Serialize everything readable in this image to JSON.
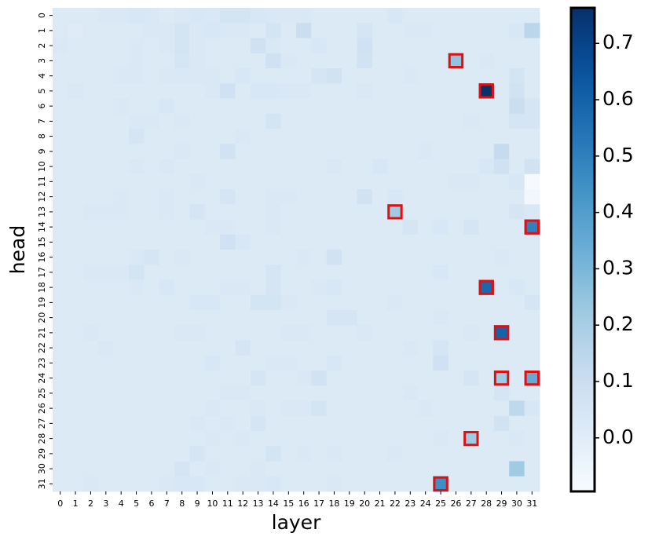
{
  "chart_data": {
    "type": "heatmap",
    "colormap": "Blues",
    "x_label": "layer",
    "y_label": "head",
    "x": [
      0,
      1,
      2,
      3,
      4,
      5,
      6,
      7,
      8,
      9,
      10,
      11,
      12,
      13,
      14,
      15,
      16,
      17,
      18,
      19,
      20,
      21,
      22,
      23,
      24,
      25,
      26,
      27,
      28,
      29,
      30,
      31
    ],
    "y": [
      0,
      1,
      2,
      3,
      4,
      5,
      6,
      7,
      8,
      9,
      10,
      11,
      12,
      13,
      14,
      15,
      16,
      17,
      18,
      19,
      20,
      21,
      22,
      23,
      24,
      25,
      26,
      27,
      28,
      29,
      30,
      31
    ],
    "zlim": [
      -0.095,
      0.763
    ],
    "colorbar_ticks": [
      {
        "value": 0,
        "label": "0.0"
      },
      0.1,
      0.2,
      0.3,
      0.4,
      0.5,
      0.6,
      0.7
    ],
    "highlight_color": "#dd1111",
    "highlights": [
      [
        3,
        26
      ],
      [
        5,
        28
      ],
      [
        13,
        22
      ],
      [
        14,
        31
      ],
      [
        18,
        28
      ],
      [
        21,
        29
      ],
      [
        24,
        29
      ],
      [
        24,
        31
      ],
      [
        28,
        27
      ],
      [
        31,
        25
      ]
    ],
    "values": [
      [
        0.02,
        0.02,
        0.02,
        0.03,
        0.03,
        0.04,
        0.03,
        0.02,
        0.03,
        0.04,
        0.03,
        0.06,
        0.06,
        0.04,
        0.03,
        0.03,
        0.03,
        0.02,
        0.02,
        0.02,
        0.02,
        0.02,
        0.04,
        0.02,
        0.02,
        0.02,
        0.02,
        0.02,
        0.02,
        0.02,
        0.02,
        0.02
      ],
      [
        0.02,
        0.01,
        0.02,
        0.02,
        0.02,
        0.02,
        0.03,
        0.03,
        0.06,
        0.03,
        0.04,
        0.03,
        0.03,
        0.02,
        0.06,
        0.02,
        0.1,
        0.02,
        0.02,
        0.02,
        0.05,
        0.02,
        0.02,
        0.03,
        0.03,
        0.02,
        0.02,
        0.02,
        0.02,
        0.02,
        0.04,
        0.15
      ],
      [
        0.03,
        0.02,
        0.02,
        0.02,
        0.02,
        0.03,
        0.02,
        0.03,
        0.06,
        0.03,
        0.02,
        0.02,
        0.02,
        0.08,
        0.03,
        0.02,
        0.02,
        0.04,
        0.02,
        0.02,
        0.08,
        0.02,
        0.02,
        0.02,
        0.02,
        0.02,
        0.02,
        0.02,
        0.02,
        0.02,
        0.02,
        0.02
      ],
      [
        0.02,
        0.02,
        0.02,
        0.02,
        0.02,
        0.03,
        0.02,
        0.02,
        0.05,
        0.03,
        0.02,
        0.02,
        0.02,
        0.02,
        0.08,
        0.03,
        0.02,
        0.02,
        0.02,
        0.02,
        0.07,
        0.02,
        0.02,
        0.02,
        0.02,
        0.02,
        0.25,
        0.02,
        0.03,
        0.02,
        0.02,
        0.02
      ],
      [
        0.02,
        0.02,
        0.02,
        0.02,
        0.03,
        0.03,
        0.02,
        0.03,
        0.03,
        0.03,
        0.03,
        0.02,
        0.04,
        0.02,
        0.02,
        0.02,
        0.02,
        0.05,
        0.07,
        0.02,
        0.02,
        0.02,
        0.02,
        0.03,
        0.02,
        0.02,
        0.02,
        0.02,
        0.02,
        0.02,
        0.06,
        0.02
      ],
      [
        0.02,
        0.03,
        0.02,
        0.02,
        0.02,
        0.02,
        0.02,
        0.02,
        0.02,
        0.02,
        0.03,
        0.08,
        0.02,
        0.04,
        0.04,
        0.03,
        0.03,
        0.02,
        0.02,
        0.02,
        0.03,
        0.02,
        0.02,
        0.02,
        0.02,
        0.02,
        0.02,
        0.02,
        0.76,
        0.02,
        0.07,
        0.02
      ],
      [
        0.02,
        0.02,
        0.02,
        0.02,
        0.03,
        0.02,
        0.02,
        0.04,
        0.02,
        0.02,
        0.02,
        0.02,
        0.02,
        0.02,
        0.02,
        0.02,
        0.02,
        0.02,
        0.02,
        0.02,
        0.02,
        0.02,
        0.02,
        0.02,
        0.02,
        0.02,
        0.02,
        0.02,
        0.02,
        0.02,
        0.1,
        0.05
      ],
      [
        0.02,
        0.02,
        0.02,
        0.02,
        0.02,
        0.03,
        0.03,
        0.02,
        0.03,
        0.02,
        0.02,
        0.02,
        0.02,
        0.02,
        0.06,
        0.02,
        0.02,
        0.02,
        0.02,
        0.02,
        0.02,
        0.02,
        0.02,
        0.02,
        0.02,
        0.02,
        0.02,
        0.03,
        0.02,
        0.02,
        0.05,
        0.05
      ],
      [
        0.02,
        0.02,
        0.02,
        0.02,
        0.02,
        0.05,
        0.02,
        0.02,
        0.02,
        0.02,
        0.02,
        0.02,
        0.03,
        0.02,
        0.02,
        0.02,
        0.02,
        0.02,
        0.02,
        0.02,
        0.02,
        0.02,
        0.02,
        0.02,
        0.02,
        0.02,
        0.02,
        0.02,
        0.02,
        0.02,
        0.02,
        0.02
      ],
      [
        0.02,
        0.02,
        0.02,
        0.02,
        0.02,
        0.02,
        0.02,
        0.02,
        0.03,
        0.02,
        0.02,
        0.07,
        0.02,
        0.02,
        0.02,
        0.02,
        0.02,
        0.02,
        0.02,
        0.02,
        0.02,
        0.02,
        0.02,
        0.02,
        0.03,
        0.02,
        0.02,
        0.02,
        0.02,
        0.12,
        0.02,
        0.02
      ],
      [
        0.02,
        0.02,
        0.02,
        0.02,
        0.02,
        0.03,
        0.02,
        0.03,
        0.02,
        0.02,
        0.02,
        0.02,
        0.02,
        0.02,
        0.02,
        0.02,
        0.02,
        0.02,
        0.03,
        0.02,
        0.02,
        0.04,
        0.02,
        0.02,
        0.02,
        0.02,
        0.02,
        0.02,
        0.04,
        0.08,
        0.02,
        0.07
      ],
      [
        0.02,
        0.02,
        0.02,
        0.02,
        0.02,
        0.02,
        0.02,
        0.02,
        0.02,
        0.03,
        0.02,
        0.02,
        0.02,
        0.02,
        0.02,
        0.02,
        0.02,
        0.02,
        0.02,
        0.02,
        0.02,
        0.02,
        0.02,
        0.02,
        0.02,
        0.02,
        0.03,
        0.03,
        0.02,
        0.02,
        0.04,
        -0.09
      ],
      [
        0.02,
        0.02,
        0.02,
        0.02,
        0.03,
        0.02,
        0.02,
        0.03,
        0.02,
        0.02,
        0.02,
        0.05,
        0.02,
        0.02,
        0.03,
        0.03,
        0.02,
        0.02,
        0.02,
        0.02,
        0.07,
        0.02,
        0.04,
        0.02,
        0.02,
        0.02,
        0.02,
        0.02,
        0.02,
        0.02,
        0.02,
        -0.07
      ],
      [
        0.02,
        0.02,
        0.03,
        0.03,
        0.03,
        0.02,
        0.02,
        0.03,
        0.02,
        0.05,
        0.02,
        0.02,
        0.02,
        0.02,
        0.03,
        0.02,
        0.02,
        0.02,
        0.02,
        0.02,
        0.02,
        0.02,
        0.22,
        0.02,
        0.02,
        0.02,
        0.02,
        0.02,
        0.02,
        0.02,
        0.05,
        0.03
      ],
      [
        0.02,
        0.02,
        0.02,
        0.02,
        0.02,
        0.02,
        0.02,
        0.02,
        0.02,
        0.02,
        0.03,
        0.03,
        0.02,
        0.02,
        0.03,
        0.02,
        0.02,
        0.02,
        0.02,
        0.02,
        0.02,
        0.02,
        0.02,
        0.05,
        0.02,
        0.04,
        0.02,
        0.05,
        0.02,
        0.02,
        0.02,
        0.5
      ],
      [
        0.02,
        0.02,
        0.02,
        0.02,
        0.02,
        0.02,
        0.02,
        0.02,
        0.02,
        0.02,
        0.02,
        0.08,
        0.04,
        0.02,
        0.02,
        0.02,
        0.02,
        0.02,
        0.02,
        0.02,
        0.02,
        0.02,
        0.02,
        0.02,
        0.02,
        0.02,
        0.02,
        0.02,
        0.02,
        0.02,
        0.02,
        0.02
      ],
      [
        0.02,
        0.02,
        0.02,
        0.02,
        0.02,
        0.03,
        0.05,
        0.02,
        0.03,
        0.02,
        0.02,
        0.02,
        0.02,
        0.02,
        0.02,
        0.02,
        0.03,
        0.02,
        0.07,
        0.02,
        0.02,
        0.02,
        0.02,
        0.02,
        0.02,
        0.02,
        0.02,
        0.02,
        0.02,
        0.03,
        0.02,
        0.02
      ],
      [
        0.02,
        0.02,
        0.03,
        0.03,
        0.03,
        0.06,
        0.02,
        0.02,
        0.02,
        0.02,
        0.02,
        0.02,
        0.02,
        0.02,
        0.05,
        0.02,
        0.02,
        0.02,
        0.02,
        0.02,
        0.02,
        0.02,
        0.02,
        0.02,
        0.02,
        0.04,
        0.02,
        0.02,
        0.02,
        0.02,
        0.02,
        0.02
      ],
      [
        0.02,
        0.02,
        0.02,
        0.02,
        0.02,
        0.03,
        0.02,
        0.04,
        0.02,
        0.02,
        0.02,
        0.03,
        0.03,
        0.02,
        0.05,
        0.02,
        0.02,
        0.03,
        0.04,
        0.02,
        0.02,
        0.02,
        0.02,
        0.02,
        0.02,
        0.02,
        0.02,
        0.02,
        0.58,
        0.02,
        0.04,
        0.02
      ],
      [
        0.02,
        0.02,
        0.02,
        0.02,
        0.02,
        0.02,
        0.02,
        0.02,
        0.02,
        0.04,
        0.04,
        0.02,
        0.02,
        0.06,
        0.06,
        0.03,
        0.02,
        0.02,
        0.02,
        0.02,
        0.02,
        0.02,
        0.03,
        0.02,
        0.02,
        0.02,
        0.02,
        0.02,
        0.02,
        0.02,
        0.02,
        0.05
      ],
      [
        0.02,
        0.02,
        0.02,
        0.02,
        0.02,
        0.02,
        0.02,
        0.02,
        0.02,
        0.02,
        0.02,
        0.02,
        0.02,
        0.02,
        0.02,
        0.02,
        0.02,
        0.02,
        0.05,
        0.05,
        0.02,
        0.02,
        0.02,
        0.02,
        0.02,
        0.03,
        0.02,
        0.02,
        0.02,
        0.02,
        0.02,
        0.02
      ],
      [
        0.02,
        0.02,
        0.03,
        0.02,
        0.02,
        0.02,
        0.02,
        0.02,
        0.03,
        0.03,
        0.02,
        0.02,
        0.02,
        0.02,
        0.02,
        0.03,
        0.03,
        0.02,
        0.02,
        0.02,
        0.03,
        0.02,
        0.02,
        0.02,
        0.02,
        0.02,
        0.02,
        0.03,
        0.02,
        0.6,
        0.02,
        0.02
      ],
      [
        0.02,
        0.02,
        0.02,
        0.03,
        0.02,
        0.02,
        0.02,
        0.02,
        0.02,
        0.02,
        0.02,
        0.02,
        0.05,
        0.02,
        0.02,
        0.02,
        0.02,
        0.02,
        0.02,
        0.02,
        0.02,
        0.02,
        0.02,
        0.03,
        0.02,
        0.05,
        0.02,
        0.02,
        0.02,
        0.02,
        0.02,
        0.02
      ],
      [
        0.02,
        0.02,
        0.02,
        0.02,
        0.02,
        0.02,
        0.02,
        0.02,
        0.02,
        0.02,
        0.04,
        0.02,
        0.02,
        0.02,
        0.03,
        0.03,
        0.02,
        0.02,
        0.04,
        0.02,
        0.02,
        0.02,
        0.02,
        0.02,
        0.02,
        0.08,
        0.02,
        0.02,
        0.02,
        0.02,
        0.02,
        0.02
      ],
      [
        0.02,
        0.02,
        0.02,
        0.02,
        0.02,
        0.02,
        0.02,
        0.02,
        0.02,
        0.02,
        0.02,
        0.02,
        0.02,
        0.05,
        0.02,
        0.02,
        0.03,
        0.07,
        0.02,
        0.02,
        0.02,
        0.02,
        0.02,
        0.02,
        0.02,
        0.02,
        0.02,
        0.05,
        0.02,
        0.22,
        0.02,
        0.35
      ],
      [
        0.02,
        0.02,
        0.02,
        0.02,
        0.02,
        0.02,
        0.02,
        0.02,
        0.02,
        0.02,
        0.02,
        0.03,
        0.03,
        0.02,
        0.02,
        0.02,
        0.02,
        0.02,
        0.02,
        0.02,
        0.02,
        0.02,
        0.02,
        0.03,
        0.02,
        0.02,
        0.02,
        0.02,
        0.02,
        0.05,
        0.02,
        0.02
      ],
      [
        0.02,
        0.02,
        0.02,
        0.02,
        0.02,
        0.02,
        0.02,
        0.02,
        0.02,
        0.02,
        0.03,
        0.02,
        0.02,
        0.03,
        0.02,
        0.03,
        0.03,
        0.06,
        0.02,
        0.02,
        0.02,
        0.02,
        0.02,
        0.02,
        0.03,
        0.02,
        0.02,
        0.02,
        0.02,
        0.02,
        0.14,
        0.04
      ],
      [
        0.02,
        0.02,
        0.02,
        0.02,
        0.02,
        0.02,
        0.02,
        0.02,
        0.02,
        0.03,
        0.02,
        0.03,
        0.02,
        0.05,
        0.02,
        0.02,
        0.02,
        0.02,
        0.02,
        0.02,
        0.02,
        0.02,
        0.02,
        0.02,
        0.02,
        0.02,
        0.02,
        0.02,
        0.02,
        0.07,
        0.02,
        0.02
      ],
      [
        0.02,
        0.02,
        0.02,
        0.02,
        0.02,
        0.02,
        0.02,
        0.02,
        0.02,
        0.02,
        0.03,
        0.02,
        0.03,
        0.02,
        0.02,
        0.02,
        0.02,
        0.02,
        0.02,
        0.02,
        0.02,
        0.02,
        0.02,
        0.02,
        0.02,
        0.03,
        0.02,
        0.22,
        0.02,
        0.02,
        0.03,
        0.02
      ],
      [
        0.02,
        0.02,
        0.02,
        0.02,
        0.02,
        0.02,
        0.02,
        0.02,
        0.02,
        0.05,
        0.02,
        0.02,
        0.02,
        0.02,
        0.06,
        0.02,
        0.03,
        0.02,
        0.03,
        0.02,
        0.02,
        0.02,
        0.03,
        0.02,
        0.02,
        0.02,
        0.02,
        0.02,
        0.02,
        0.02,
        0.02,
        0.02
      ],
      [
        0.02,
        0.02,
        0.02,
        0.02,
        0.02,
        0.02,
        0.02,
        0.02,
        0.05,
        0.02,
        0.03,
        0.02,
        0.02,
        0.03,
        0.02,
        0.02,
        0.02,
        0.02,
        0.02,
        0.02,
        0.02,
        0.02,
        0.02,
        0.02,
        0.02,
        0.02,
        0.02,
        0.02,
        0.02,
        0.02,
        0.22,
        0.02
      ],
      [
        0.02,
        0.02,
        0.03,
        0.02,
        0.02,
        0.02,
        0.02,
        0.03,
        0.04,
        0.04,
        0.02,
        0.02,
        0.03,
        0.03,
        0.04,
        0.02,
        0.02,
        0.02,
        0.03,
        0.02,
        0.02,
        0.02,
        0.02,
        0.02,
        0.02,
        0.45,
        0.02,
        0.02,
        0.02,
        0.02,
        0.02,
        0.02
      ]
    ]
  }
}
